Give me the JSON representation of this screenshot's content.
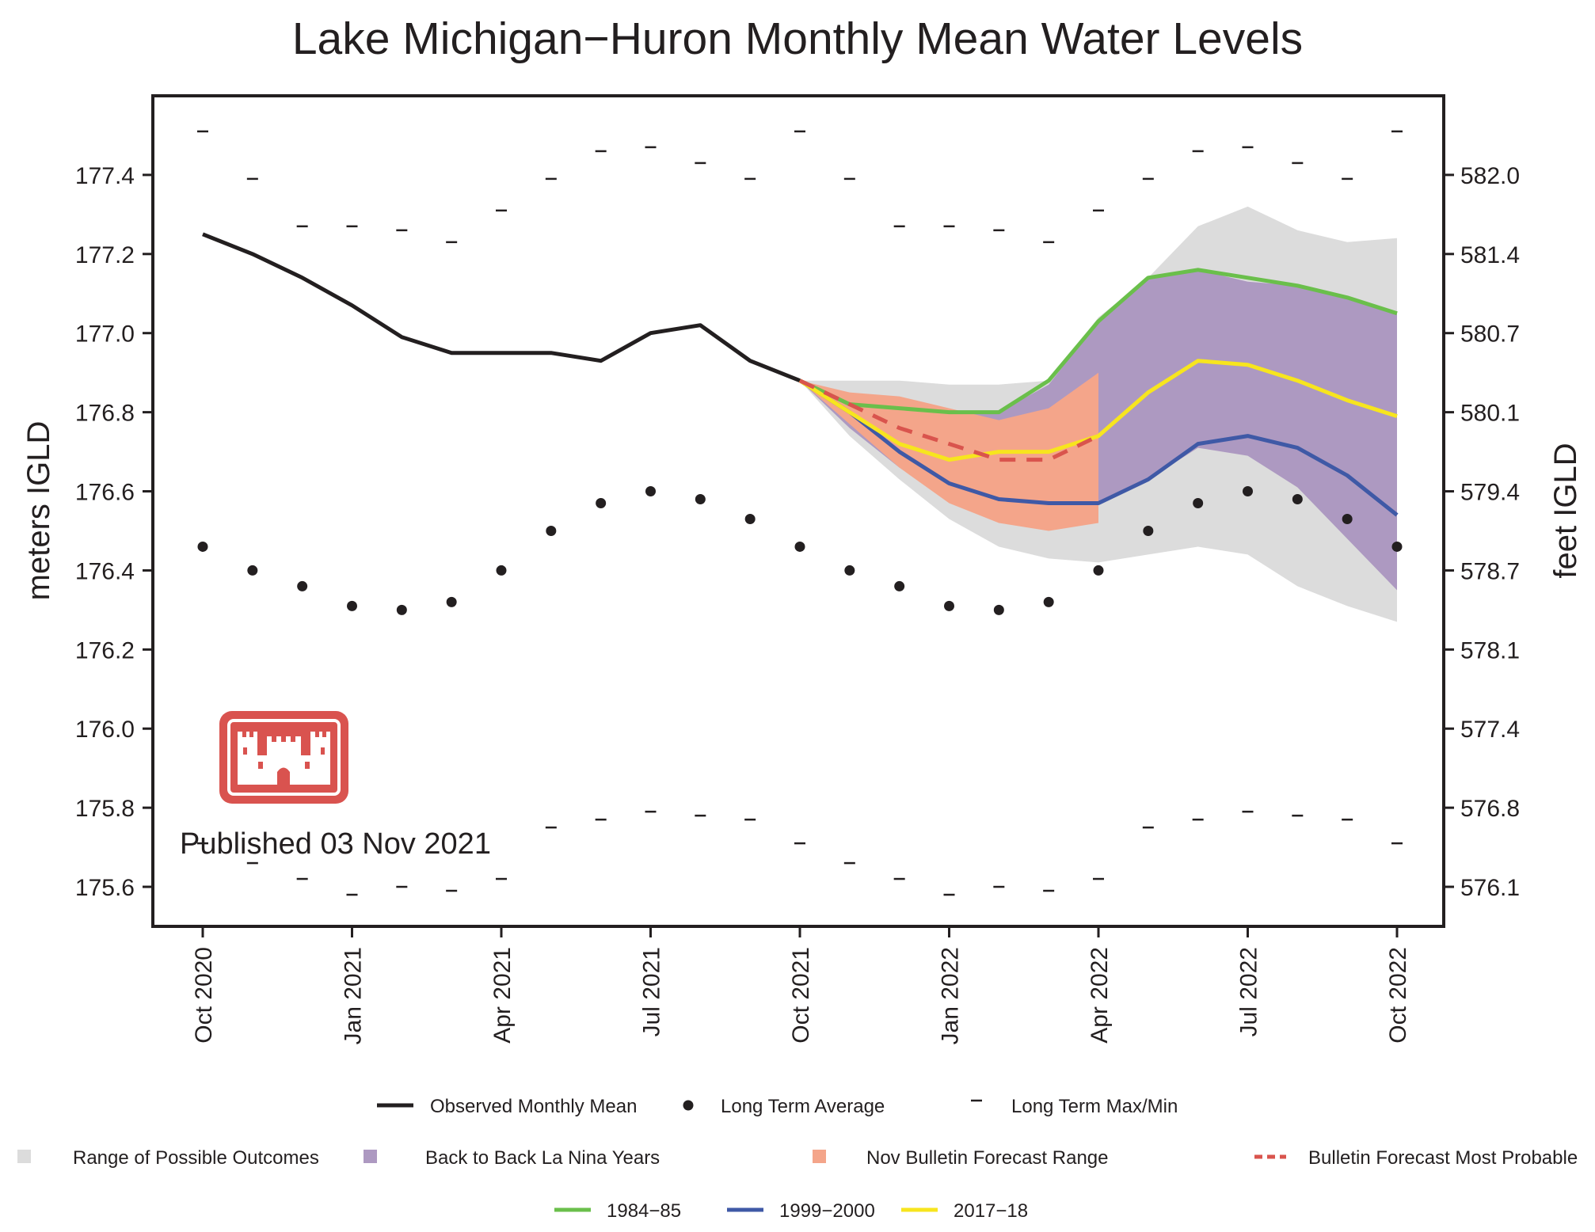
{
  "chart_data": {
    "type": "line",
    "title": "Lake Michigan−Huron Monthly Mean Water Levels",
    "ylabel": "meters IGLD",
    "ylabel_right": "feet IGLD",
    "ylim": [
      175.5,
      177.6
    ],
    "yticks": [
      "175.6",
      "175.8",
      "176.0",
      "176.2",
      "176.4",
      "176.6",
      "176.8",
      "177.0",
      "177.2",
      "177.4"
    ],
    "yticks_right": [
      "576.1",
      "576.8",
      "577.4",
      "578.1",
      "578.7",
      "579.4",
      "580.1",
      "580.7",
      "581.4",
      "582.0"
    ],
    "months": [
      "2020-10",
      "2020-11",
      "2020-12",
      "2021-01",
      "2021-02",
      "2021-03",
      "2021-04",
      "2021-05",
      "2021-06",
      "2021-07",
      "2021-08",
      "2021-09",
      "2021-10",
      "2021-11",
      "2021-12",
      "2022-01",
      "2022-02",
      "2022-03",
      "2022-04",
      "2022-05",
      "2022-06",
      "2022-07",
      "2022-08",
      "2022-09",
      "2022-10"
    ],
    "xtick_labels": [
      {
        "month": "2020-10",
        "label": "Oct 2020"
      },
      {
        "month": "2021-01",
        "label": "Jan 2021"
      },
      {
        "month": "2021-04",
        "label": "Apr 2021"
      },
      {
        "month": "2021-07",
        "label": "Jul 2021"
      },
      {
        "month": "2021-10",
        "label": "Oct 2021"
      },
      {
        "month": "2022-01",
        "label": "Jan 2022"
      },
      {
        "month": "2022-04",
        "label": "Apr 2022"
      },
      {
        "month": "2022-07",
        "label": "Jul 2022"
      },
      {
        "month": "2022-10",
        "label": "Oct 2022"
      }
    ],
    "observed": {
      "name": "Observed Monthly Mean",
      "color": "#231f20",
      "x": [
        "2020-10",
        "2020-11",
        "2020-12",
        "2021-01",
        "2021-02",
        "2021-03",
        "2021-04",
        "2021-05",
        "2021-06",
        "2021-07",
        "2021-08",
        "2021-09",
        "2021-10"
      ],
      "y": [
        177.25,
        177.2,
        177.14,
        177.07,
        176.99,
        176.95,
        176.95,
        176.95,
        176.93,
        177.0,
        177.02,
        176.93,
        176.88
      ]
    },
    "long_term_average": {
      "name": "Long Term Average",
      "color": "#231f20",
      "y": [
        176.46,
        176.4,
        176.36,
        176.31,
        176.3,
        176.32,
        176.4,
        176.5,
        176.57,
        176.6,
        176.58,
        176.53,
        176.46,
        176.4,
        176.36,
        176.31,
        176.3,
        176.32,
        176.4,
        176.5,
        176.57,
        176.6,
        176.58,
        176.53,
        176.46
      ]
    },
    "long_term_max": {
      "name": "Long Term Max/Min",
      "y": [
        177.51,
        177.39,
        177.27,
        177.27,
        177.26,
        177.23,
        177.31,
        177.39,
        177.46,
        177.47,
        177.43,
        177.39,
        177.51,
        177.39,
        177.27,
        177.27,
        177.26,
        177.23,
        177.31,
        177.39,
        177.46,
        177.47,
        177.43,
        177.39,
        177.51
      ]
    },
    "long_term_min": {
      "y": [
        175.71,
        175.66,
        175.62,
        175.58,
        175.6,
        175.59,
        175.62,
        175.75,
        175.77,
        175.79,
        175.78,
        175.77,
        175.71,
        175.66,
        175.62,
        175.58,
        175.6,
        175.59,
        175.62,
        175.75,
        175.77,
        175.79,
        175.78,
        175.77,
        175.71
      ]
    },
    "range_possible_outcomes": {
      "name": "Range of Possible Outcomes",
      "color": "#dcdcdc",
      "x": [
        "2021-10",
        "2021-11",
        "2021-12",
        "2022-01",
        "2022-02",
        "2022-03",
        "2022-04",
        "2022-05",
        "2022-06",
        "2022-07",
        "2022-08",
        "2022-09",
        "2022-10"
      ],
      "upper": [
        176.88,
        176.88,
        176.88,
        176.87,
        176.87,
        176.88,
        177.04,
        177.14,
        177.27,
        177.32,
        177.26,
        177.23,
        177.24
      ],
      "lower": [
        176.88,
        176.74,
        176.63,
        176.53,
        176.46,
        176.43,
        176.42,
        176.44,
        176.46,
        176.44,
        176.36,
        176.31,
        176.27
      ]
    },
    "back_to_back_la_nina": {
      "name": "Back to Back La Nina Years",
      "color": "#ad99c1",
      "x": [
        "2021-10",
        "2021-11",
        "2021-12",
        "2022-01",
        "2022-02",
        "2022-03",
        "2022-04",
        "2022-05",
        "2022-06",
        "2022-07",
        "2022-08",
        "2022-09",
        "2022-10"
      ],
      "upper": [
        176.88,
        176.82,
        176.81,
        176.8,
        176.8,
        176.87,
        177.03,
        177.14,
        177.16,
        177.13,
        177.12,
        177.09,
        177.05
      ],
      "lower": [
        176.88,
        176.76,
        176.66,
        176.6,
        176.57,
        176.56,
        176.57,
        176.63,
        176.71,
        176.69,
        176.61,
        176.48,
        176.35
      ]
    },
    "nov_bulletin_forecast_range": {
      "name": "Nov Bulletin Forecast Range",
      "color": "#f4a58a",
      "x": [
        "2021-10",
        "2021-11",
        "2021-12",
        "2022-01",
        "2022-02",
        "2022-03",
        "2022-04"
      ],
      "upper": [
        176.88,
        176.85,
        176.84,
        176.81,
        176.78,
        176.81,
        176.9
      ],
      "lower": [
        176.88,
        176.77,
        176.66,
        176.57,
        176.52,
        176.5,
        176.52
      ]
    },
    "bulletin_forecast_most_probable": {
      "name": "Bulletin Forecast Most Probable",
      "color": "#d9544d",
      "x": [
        "2021-10",
        "2021-11",
        "2021-12",
        "2022-01",
        "2022-02",
        "2022-03",
        "2022-04"
      ],
      "y": [
        176.88,
        176.82,
        176.76,
        176.72,
        176.68,
        176.68,
        176.74
      ]
    },
    "series": [
      {
        "name": "1984−85",
        "color": "#6abf4b",
        "x": [
          "2021-10",
          "2021-11",
          "2021-12",
          "2022-01",
          "2022-02",
          "2022-03",
          "2022-04",
          "2022-05",
          "2022-06",
          "2022-07",
          "2022-08",
          "2022-09",
          "2022-10"
        ],
        "y": [
          176.88,
          176.82,
          176.81,
          176.8,
          176.8,
          176.88,
          177.03,
          177.14,
          177.16,
          177.14,
          177.12,
          177.09,
          177.05
        ]
      },
      {
        "name": "1999−2000",
        "color": "#3f59a6",
        "x": [
          "2021-10",
          "2021-11",
          "2021-12",
          "2022-01",
          "2022-02",
          "2022-03",
          "2022-04",
          "2022-05",
          "2022-06",
          "2022-07",
          "2022-08",
          "2022-09",
          "2022-10"
        ],
        "y": [
          176.88,
          176.8,
          176.7,
          176.62,
          176.58,
          176.57,
          176.57,
          176.63,
          176.72,
          176.74,
          176.71,
          176.64,
          176.54
        ]
      },
      {
        "name": "2017−18",
        "color": "#f7e51e",
        "x": [
          "2021-10",
          "2021-11",
          "2021-12",
          "2022-01",
          "2022-02",
          "2022-03",
          "2022-04",
          "2022-05",
          "2022-06",
          "2022-07",
          "2022-08",
          "2022-09",
          "2022-10"
        ],
        "y": [
          176.88,
          176.8,
          176.72,
          176.68,
          176.7,
          176.7,
          176.74,
          176.85,
          176.93,
          176.92,
          176.88,
          176.83,
          176.79
        ]
      }
    ],
    "legend_placement": "bottom",
    "grid": false
  },
  "published": "Published 03 Nov 2021",
  "logo": {
    "name": "USACE castle logo",
    "color": "#d9534f"
  }
}
